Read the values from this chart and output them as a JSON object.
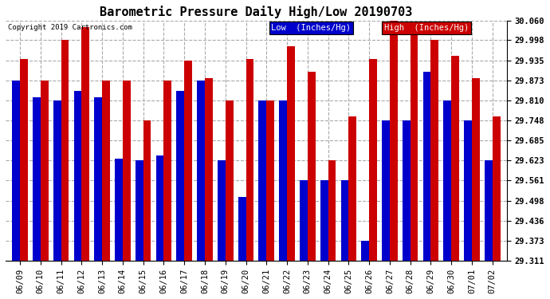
{
  "title": "Barometric Pressure Daily High/Low 20190703",
  "copyright": "Copyright 2019 Cartronics.com",
  "background_color": "#ffffff",
  "plot_bg_color": "#ffffff",
  "grid_color": "#aaaaaa",
  "dates": [
    "06/09",
    "06/10",
    "06/11",
    "06/12",
    "06/13",
    "06/14",
    "06/15",
    "06/16",
    "06/17",
    "06/18",
    "06/19",
    "06/20",
    "06/21",
    "06/22",
    "06/23",
    "06/24",
    "06/25",
    "06/26",
    "06/27",
    "06/28",
    "06/29",
    "06/30",
    "07/01",
    "07/02"
  ],
  "low": [
    29.873,
    29.82,
    29.81,
    29.84,
    29.82,
    29.63,
    29.623,
    29.64,
    29.84,
    29.873,
    29.623,
    29.51,
    29.81,
    29.81,
    29.561,
    29.561,
    29.561,
    29.373,
    29.748,
    29.748,
    29.9,
    29.81,
    29.748,
    29.623
  ],
  "high": [
    29.94,
    29.873,
    29.998,
    30.04,
    29.873,
    29.873,
    29.748,
    29.873,
    29.935,
    29.88,
    29.81,
    29.94,
    29.81,
    29.98,
    29.9,
    29.623,
    29.76,
    29.94,
    30.06,
    30.05,
    29.998,
    29.95,
    29.88,
    29.76
  ],
  "ylim_min": 29.311,
  "ylim_max": 30.06,
  "yticks": [
    29.311,
    29.373,
    29.436,
    29.498,
    29.561,
    29.623,
    29.685,
    29.748,
    29.81,
    29.873,
    29.935,
    29.998,
    30.06
  ],
  "low_color": "#0000cc",
  "high_color": "#cc0000",
  "bar_width": 0.38,
  "title_fontsize": 11,
  "axis_fontsize": 7.5,
  "legend_fontsize": 8
}
